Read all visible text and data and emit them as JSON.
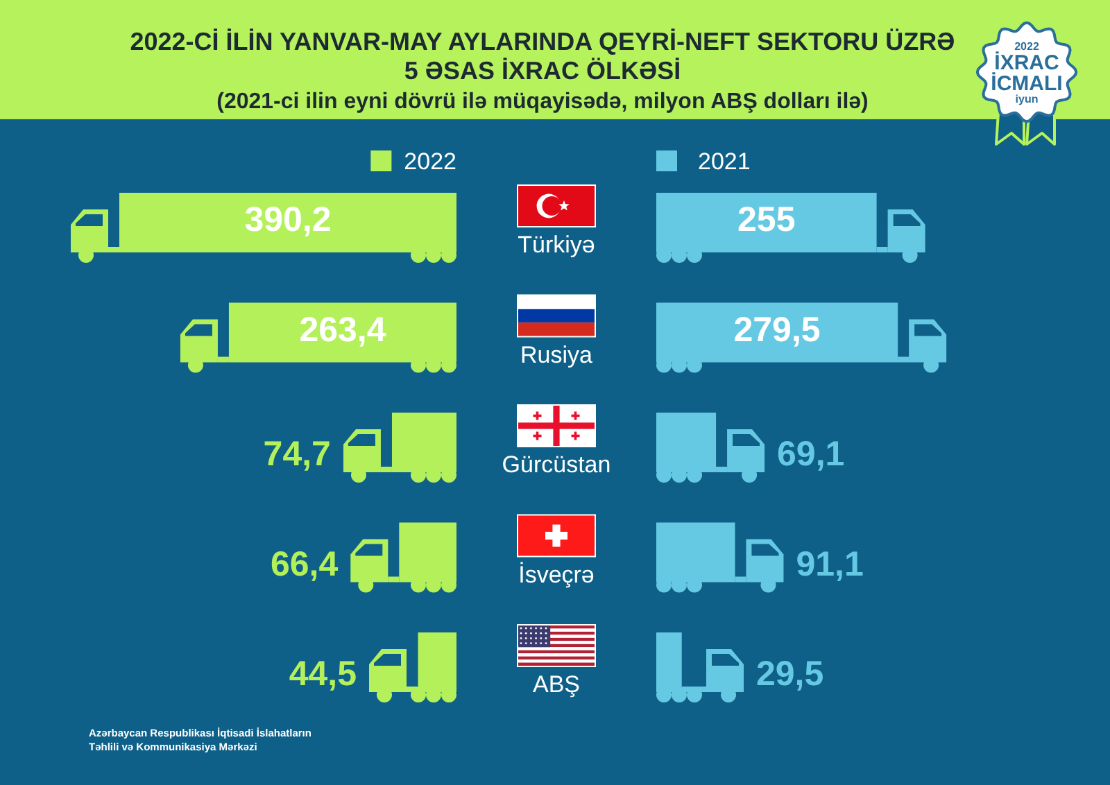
{
  "chart_data": [
    {
      "type": "bar",
      "orientation": "horizontal",
      "title": "2022-Cİ İLİN YANVAR-MAY AYLARINDA QEYRİ-NEFT SEKTORU ÜZRƏ 5 ƏSAS İXRAC ÖLKƏSİ",
      "subtitle": "(2021-ci ilin eyni dövrü ilə müqayisədə, milyon ABŞ dolları ilə)",
      "categories": [
        "Türkiyə",
        "Rusiya",
        "Gürcüstan",
        "İsveçrə",
        "ABŞ"
      ],
      "series": [
        {
          "name": "2022",
          "color": "#b4f05a",
          "values": [
            390.2,
            263.4,
            74.7,
            66.4,
            44.5
          ],
          "value_labels": [
            "390,2",
            "263,4",
            "74,7",
            "66,4",
            "44,5"
          ]
        }
      ],
      "legend": "top",
      "tick_labels": "y",
      "annotations": [
        "2022",
        "İXRAC",
        "İCMALI",
        "iyun",
        "Azərbaycan Respublikası İqtisadi İslahatların Təhlili və Kommunikasiya Mərkəzi"
      ]
    },
    {
      "type": "bar",
      "orientation": "horizontal",
      "categories": [
        "Türkiyə",
        "Rusiya",
        "Gürcüstan",
        "İsveçrə",
        "ABŞ"
      ],
      "series": [
        {
          "name": "2021",
          "color": "#66c9e3",
          "values": [
            255,
            279.5,
            69.1,
            91.1,
            29.5
          ],
          "value_labels": [
            "255",
            "279,5",
            "69,1",
            "91,1",
            "29,5"
          ]
        }
      ],
      "legend": "top",
      "tick_labels": false
    }
  ]
}
